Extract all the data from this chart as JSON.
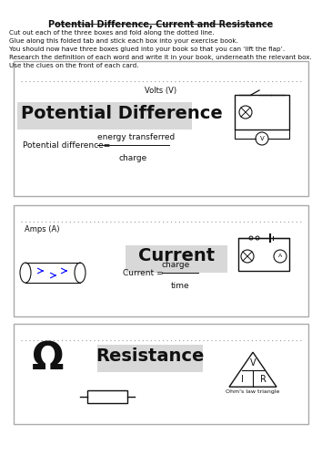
{
  "title": "Potential Difference, Current and Resistance",
  "instructions": [
    "Cut out each of the three boxes and fold along the dotted line.",
    "Glue along this folded tab and stick each box into your exercise book.",
    "You should now have three boxes glued into your book so that you can ‘lift the flap’.",
    "Research the definition of each word and write it in your book, underneath the relevant box.",
    "Use the clues on the front of each card."
  ],
  "box1_unit": "Volts (V)",
  "box1_title": "Potential Difference",
  "box1_formula_prefix": "Potential difference= ",
  "box1_formula_numerator": "energy transferred",
  "box1_formula_denominator": "charge",
  "box2_unit": "Amps (A)",
  "box2_title": "Current",
  "box2_formula_prefix": "Current = ",
  "box2_formula_numerator": "charge",
  "box2_formula_denominator": "time",
  "box3_title": "Resistance",
  "box3_omega": "Ω",
  "box3_triangle_label": "Ohm's law triangle",
  "box3_triangle_v": "V",
  "box3_triangle_i": "I",
  "box3_triangle_r": "R",
  "bg_color": "#ffffff",
  "highlight_color": "#d8d8d8",
  "text_color": "#111111",
  "dotted_color": "#999999",
  "box_border": "#aaaaaa"
}
